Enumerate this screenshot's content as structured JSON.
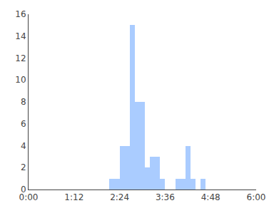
{
  "chart_data": {
    "type": "bar",
    "x": [
      132,
      140,
      148,
      156,
      164,
      172,
      180,
      188,
      196,
      204,
      212,
      236,
      244,
      252,
      260,
      276
    ],
    "values": [
      1,
      1,
      4,
      4,
      15,
      8,
      8,
      2,
      3,
      3,
      1,
      1,
      1,
      4,
      1,
      1
    ],
    "color": "#AACCFF",
    "xlim": [
      0,
      360
    ],
    "xticks": [
      {
        "value": 0,
        "label": "0:00"
      },
      {
        "value": 72,
        "label": "1:12"
      },
      {
        "value": 144,
        "label": "2:24"
      },
      {
        "value": 216,
        "label": "3:36"
      },
      {
        "value": 288,
        "label": "4:48"
      },
      {
        "value": 360,
        "label": "6:00"
      }
    ],
    "ylim": [
      0,
      16
    ],
    "yticks": [
      0,
      2,
      4,
      6,
      8,
      10,
      12,
      14,
      16
    ],
    "grid": false
  }
}
